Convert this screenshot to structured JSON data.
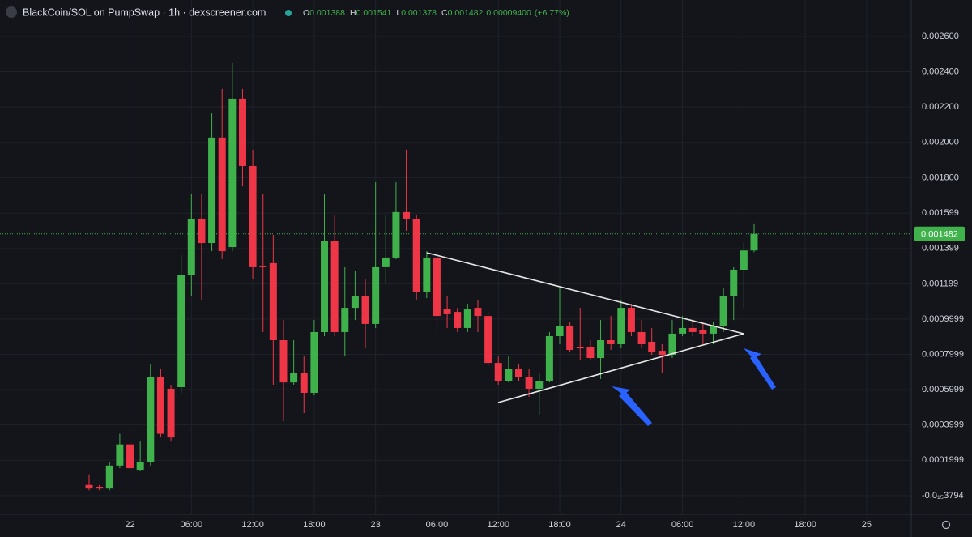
{
  "chart_data": {
    "type": "candlestick",
    "title": "BlackCoin/SOL on PumpSwap · 1h · dexscreener.com",
    "header_ohlc": [
      {
        "key": "O",
        "value": "0.001388"
      },
      {
        "key": "H",
        "value": "0.001541"
      },
      {
        "key": "L",
        "value": "0.001378"
      },
      {
        "key": "C",
        "value": "0.001482"
      }
    ],
    "change": "0.00009400",
    "change_percent": "(+6.77%)",
    "open": [
      6e-05,
      5e-05,
      4e-05,
      0.00017,
      0.00029,
      0.000146,
      0.00019,
      0.000673,
      0.000605,
      0.000614,
      0.001247,
      0.001568,
      0.00143,
      0.002027,
      0.001407,
      0.002247,
      0.001866,
      0.001302,
      0.001316,
      0.00088,
      0.000641,
      0.000696,
      0.000582,
      0.000926,
      0.001444,
      0.000926,
      0.001063,
      0.001132,
      0.000972,
      0.001293,
      0.001348,
      0.001605,
      0.001568,
      0.001155,
      0.001348,
      0.001054,
      0.00104,
      0.000949,
      0.001063,
      0.001017,
      0.000751,
      0.00065,
      0.000719,
      0.000673,
      0.000605,
      0.00065,
      0.000903,
      0.000962,
      0.000843,
      0.000843,
      0.000779,
      0.00088,
      0.000857,
      0.001063,
      0.000926,
      0.000871,
      0.00082,
      0.000797,
      0.000917,
      0.000949,
      0.000935,
      0.000917,
      0.000962,
      0.001132,
      0.001279,
      0.001388
    ],
    "high": [
      0.00012,
      6e-05,
      0.00019,
      0.00035,
      0.000375,
      0.000306,
      0.000742,
      0.000719,
      0.000628,
      0.001361,
      0.001706,
      0.001706,
      0.002164,
      0.002302,
      0.002449,
      0.002302,
      0.001958,
      0.001706,
      0.001476,
      0.000994,
      0.00088,
      0.000788,
      0.000994,
      0.001706,
      0.001591,
      0.001293,
      0.00127,
      0.001224,
      0.001774,
      0.001591,
      0.001774,
      0.001958,
      0.001591,
      0.001384,
      0.001375,
      0.001132,
      0.001063,
      0.001086,
      0.001109,
      0.00104,
      0.000788,
      0.000788,
      0.000742,
      0.000719,
      0.000696,
      0.000926,
      0.001178,
      0.000981,
      0.001063,
      0.00088,
      0.000994,
      0.001017,
      0.001109,
      0.001086,
      0.000994,
      0.000949,
      0.000857,
      0.000994,
      0.001017,
      0.000994,
      0.000972,
      0.000981,
      0.001178,
      0.001293,
      0.00143,
      0.001541
    ],
    "low": [
      3e-05,
      3e-05,
      3e-05,
      0.000155,
      0.000137,
      0.000137,
      0.00017,
      0.000329,
      0.000306,
      0.000582,
      0.001132,
      0.001109,
      0.001384,
      0.001339,
      0.001384,
      0.001751,
      0.001224,
      0.000926,
      0.000628,
      0.000421,
      0.000628,
      0.000467,
      0.000568,
      0.000903,
      0.000903,
      0.000788,
      0.000994,
      0.000834,
      0.000949,
      0.001201,
      0.001339,
      0.001499,
      0.001109,
      0.001118,
      0.000926,
      0.000949,
      0.000926,
      0.000926,
      0.000926,
      0.000733,
      0.000628,
      0.000641,
      0.00065,
      0.000559,
      0.000458,
      0.000641,
      0.000857,
      0.000811,
      0.000765,
      0.000765,
      0.00066,
      0.000825,
      0.000834,
      0.000903,
      0.000834,
      0.000797,
      0.000696,
      0.000779,
      0.000903,
      0.000903,
      0.000857,
      0.000857,
      0.000926,
      0.000994,
      0.001063,
      0.001378
    ],
    "close": [
      4e-05,
      4e-05,
      0.00017,
      0.00029,
      0.000155,
      0.00019,
      0.000673,
      0.00035,
      0.000329,
      0.001247,
      0.001568,
      0.00143,
      0.002027,
      0.001384,
      0.002247,
      0.001866,
      0.001293,
      0.001293,
      0.00088,
      0.000641,
      0.000696,
      0.000582,
      0.000926,
      0.001444,
      0.000926,
      0.001063,
      0.001132,
      0.000972,
      0.001293,
      0.001348,
      0.001605,
      0.001568,
      0.001155,
      0.001348,
      0.001017,
      0.001027,
      0.000949,
      0.001054,
      0.001017,
      0.000751,
      0.00065,
      0.000719,
      0.000673,
      0.000605,
      0.00065,
      0.000903,
      0.000962,
      0.000825,
      0.000834,
      0.000779,
      0.00088,
      0.000857,
      0.001063,
      0.000926,
      0.000857,
      0.000811,
      0.000797,
      0.000917,
      0.000949,
      0.000926,
      0.000917,
      0.000962,
      0.001132,
      0.001279,
      0.001388,
      0.001482
    ],
    "up_color": "#3fb24b",
    "down_color": "#ee3647",
    "last_price": 0.001482,
    "last_price_color": "#3fb24b",
    "xlim": [
      -8.71,
      80.36
    ],
    "xticks": [
      {
        "value": 4,
        "label": "22"
      },
      {
        "value": 10,
        "label": "06:00"
      },
      {
        "value": 16,
        "label": "12:00"
      },
      {
        "value": 22,
        "label": "18:00"
      },
      {
        "value": 28,
        "label": "23"
      },
      {
        "value": 34,
        "label": "06:00"
      },
      {
        "value": 40,
        "label": "12:00"
      },
      {
        "value": 46,
        "label": "18:00"
      },
      {
        "value": 52,
        "label": "24"
      },
      {
        "value": 58,
        "label": "06:00"
      },
      {
        "value": 64,
        "label": "12:00"
      },
      {
        "value": 70,
        "label": "18:00"
      },
      {
        "value": 76,
        "label": "25"
      }
    ],
    "ylim": [
      -0.000106,
      0.002806
    ],
    "yticks": [
      {
        "value": -3.794e-16,
        "label": "-0.0₁₅3794"
      },
      {
        "value": 0.0001999,
        "label": "0.0001999"
      },
      {
        "value": 0.0003999,
        "label": "0.0003999"
      },
      {
        "value": 0.0005999,
        "label": "0.0005999"
      },
      {
        "value": 0.0007999,
        "label": "0.0007999"
      },
      {
        "value": 0.0009999,
        "label": "0.0009999"
      },
      {
        "value": 0.001199,
        "label": "0.001199"
      },
      {
        "value": 0.001399,
        "label": "0.001399"
      },
      {
        "value": 0.001599,
        "label": "0.001599"
      },
      {
        "value": 0.0018,
        "label": "0.001800"
      },
      {
        "value": 0.002,
        "label": "0.002000"
      },
      {
        "value": 0.0022,
        "label": "0.002200"
      },
      {
        "value": 0.0024,
        "label": "0.002400"
      },
      {
        "value": 0.0026,
        "label": "0.002600"
      }
    ],
    "grid": true
  }
}
